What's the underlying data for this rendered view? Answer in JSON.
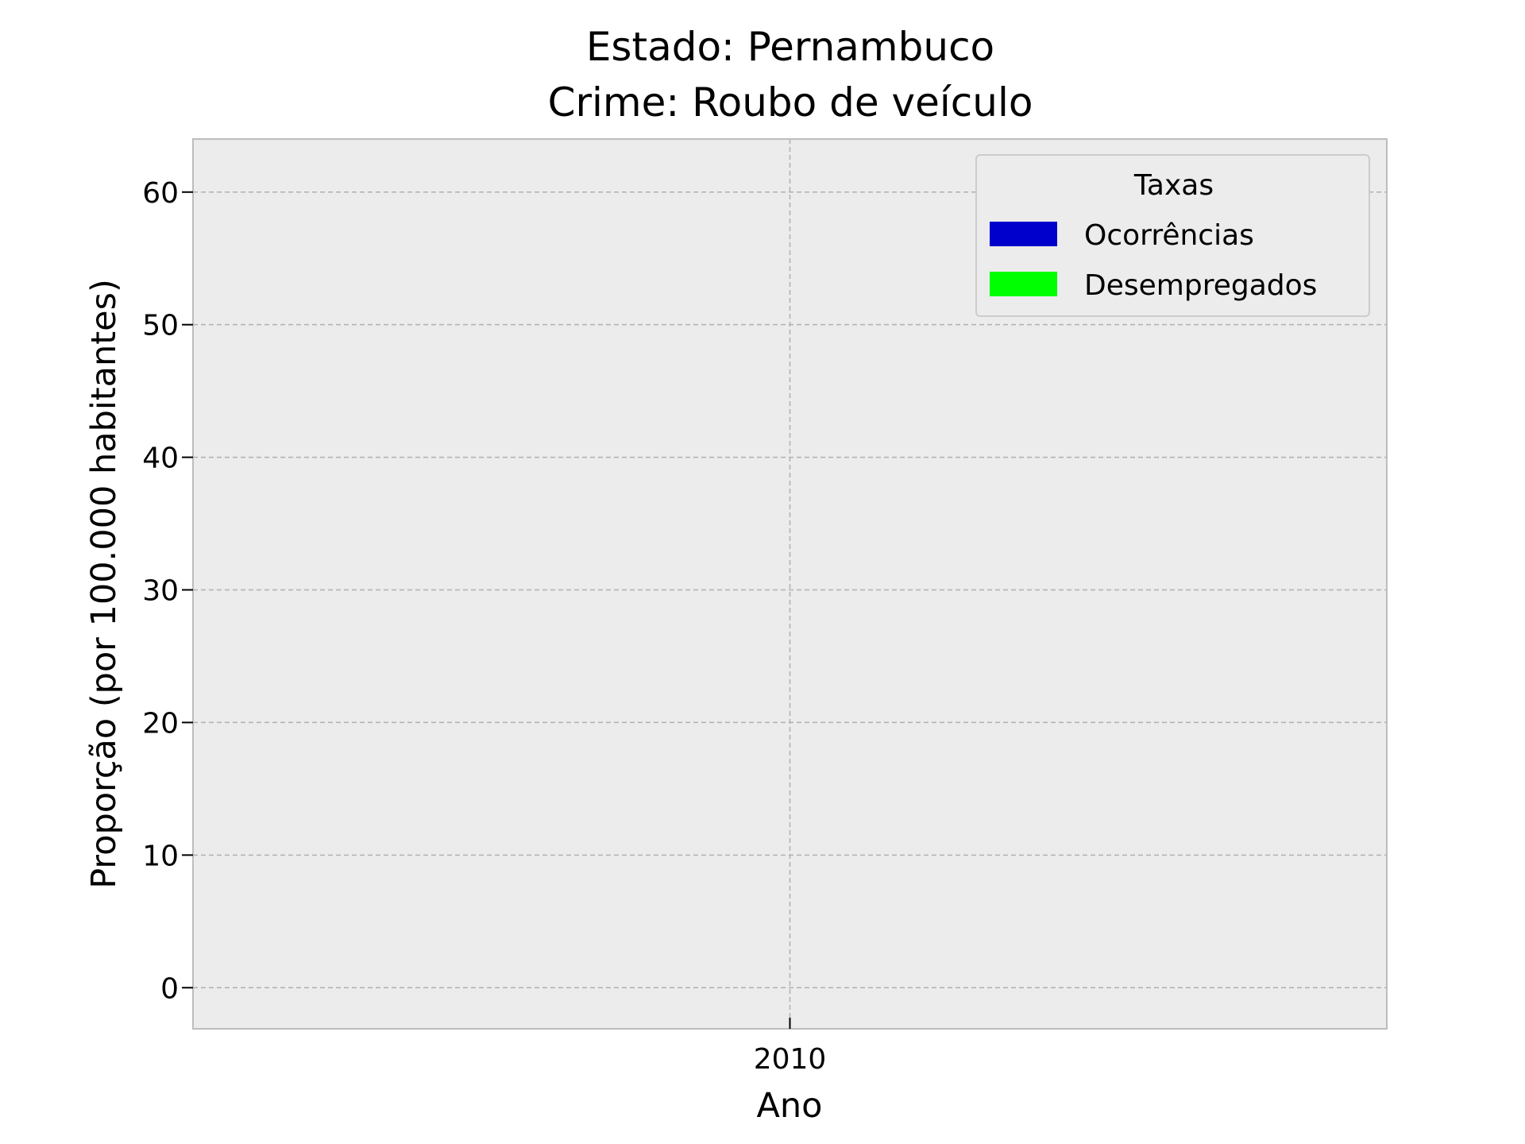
{
  "chart_data": {
    "type": "bar",
    "title_lines": [
      "Estado: Pernambuco",
      "Crime: Roubo de veículo"
    ],
    "xlabel": "Ano",
    "ylabel": "Proporção (por 100.000 habitantes)",
    "categories": [
      "2010"
    ],
    "x_ticks": [
      "2010"
    ],
    "y_ticks": [
      0,
      10,
      20,
      30,
      40,
      50,
      60
    ],
    "ylim": [
      -3.1,
      64.0
    ],
    "grid": true,
    "legend": {
      "title": "Taxas",
      "placement": "upper right",
      "entries": [
        {
          "name": "Ocorrências",
          "color": "#0000cc"
        },
        {
          "name": "Desempregados",
          "color": "#00ff00"
        }
      ]
    },
    "series": [
      {
        "name": "Ocorrências",
        "color": "#0000cc",
        "values": [
          null
        ]
      },
      {
        "name": "Desempregados",
        "color": "#00ff00",
        "values": [
          null
        ]
      }
    ],
    "colors": {
      "plot_background": "#ececec",
      "grid": "#b0b0b0",
      "spine": "#bdbdbd"
    }
  }
}
